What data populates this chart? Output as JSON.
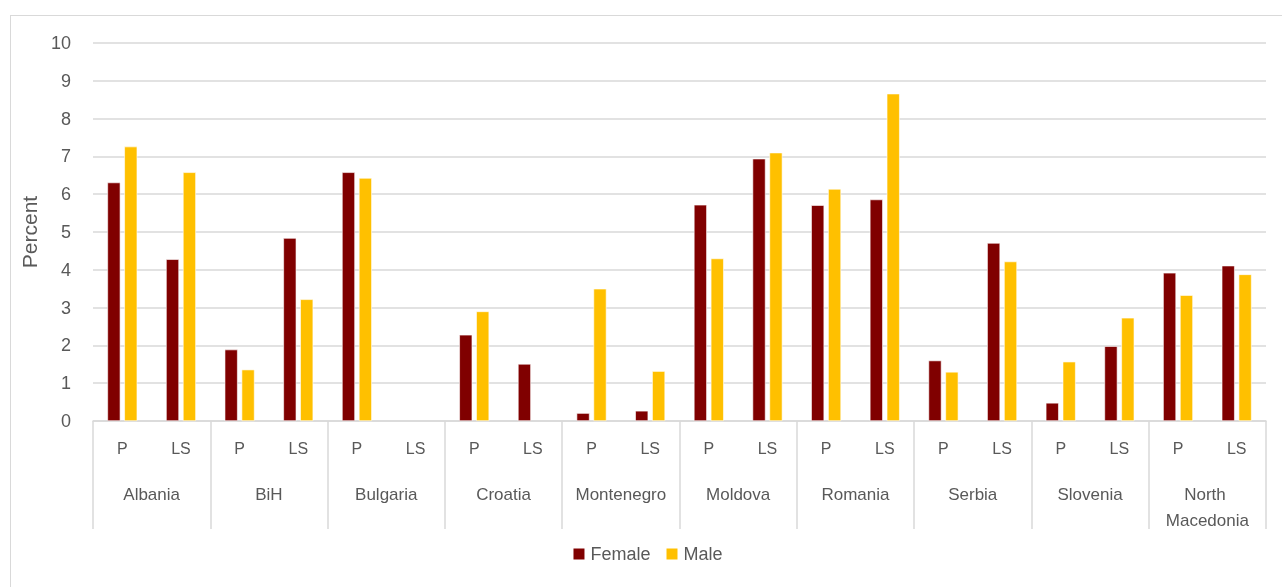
{
  "chart_data": {
    "type": "bar",
    "ylabel": "Percent",
    "categories": [
      "P",
      "LS",
      "P",
      "LS",
      "P",
      "LS",
      "P",
      "LS",
      "P",
      "LS",
      "P",
      "LS",
      "P",
      "LS",
      "P",
      "LS",
      "P",
      "LS",
      "P",
      "LS"
    ],
    "annotations": [
      "Albania",
      "BiH",
      "Bulgaria",
      "Croatia",
      "Montenegro",
      "Moldova",
      "Romania",
      "Serbia",
      "Slovenia",
      "North Macedonia"
    ],
    "series": [
      {
        "name": "Female",
        "color": "#800000",
        "values": [
          6.31,
          4.28,
          1.89,
          4.84,
          6.58,
          null,
          2.28,
          1.51,
          0.21,
          0.27,
          5.72,
          6.94,
          5.71,
          5.86,
          1.6,
          4.71,
          0.48,
          1.98,
          3.92,
          4.11
        ]
      },
      {
        "name": "Male",
        "color": "#ffc000",
        "values": [
          7.26,
          6.58,
          1.36,
          3.22,
          6.43,
          null,
          2.9,
          null,
          3.5,
          1.32,
          4.3,
          7.1,
          6.14,
          8.66,
          1.3,
          4.22,
          1.57,
          2.73,
          3.33,
          3.88
        ]
      }
    ],
    "ylim": [
      0,
      10
    ],
    "yticks": [
      0,
      1,
      2,
      3,
      4,
      5,
      6,
      7,
      8,
      9,
      10
    ],
    "grid": "y",
    "legend": "bottom"
  }
}
